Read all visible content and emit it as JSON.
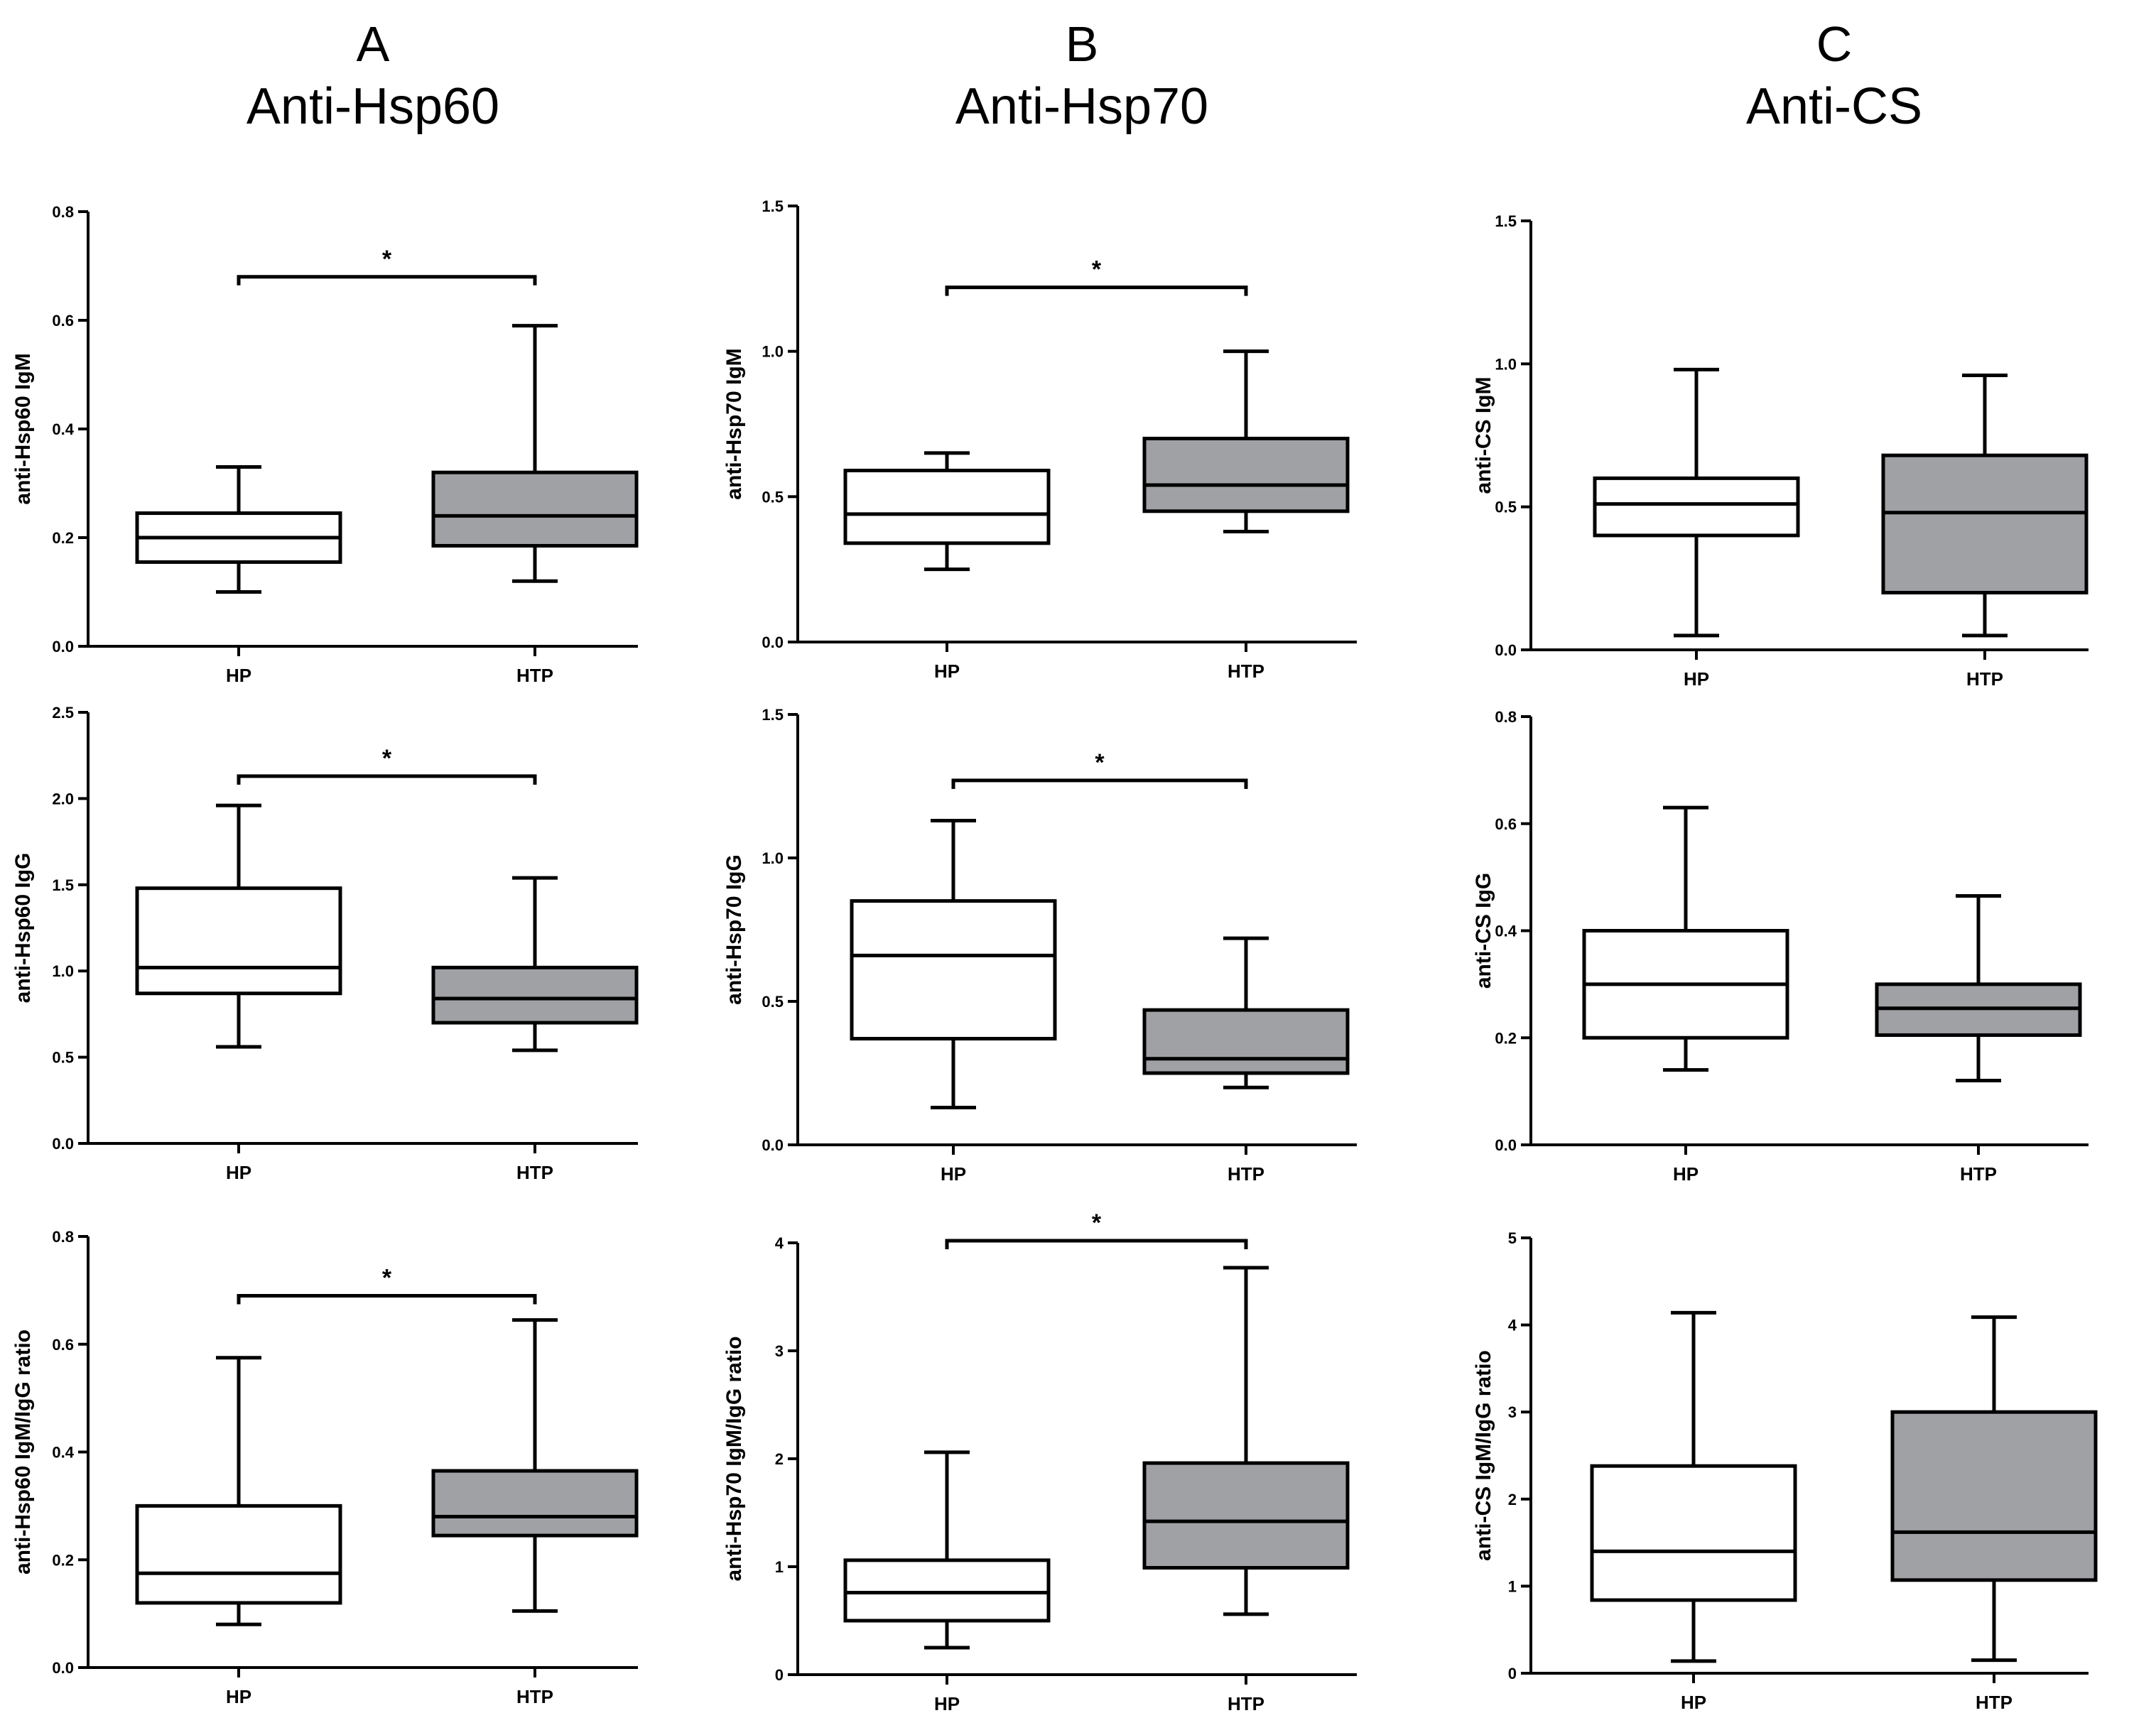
{
  "columns": [
    {
      "letter": "A",
      "title": "Anti-Hsp60"
    },
    {
      "letter": "B",
      "title": "Anti-Hsp70"
    },
    {
      "letter": "C",
      "title": "Anti-CS"
    }
  ],
  "colors": {
    "hp_fill": "#ffffff",
    "htp_fill": "#a0a1a5",
    "stroke": "#000000"
  },
  "chart_data": [
    {
      "id": "a1",
      "type": "box",
      "ylabel": "anti-Hsp60 IgM",
      "ylim": [
        0,
        0.8
      ],
      "yticks": [
        0.0,
        0.2,
        0.4,
        0.6,
        0.8
      ],
      "tick_decimals": 1,
      "categories": [
        "HP",
        "HTP"
      ],
      "boxes": [
        {
          "name": "HP",
          "min": 0.1,
          "q1": 0.155,
          "median": 0.2,
          "q3": 0.245,
          "max": 0.33
        },
        {
          "name": "HTP",
          "min": 0.12,
          "q1": 0.185,
          "median": 0.24,
          "q3": 0.32,
          "max": 0.59
        }
      ],
      "significance": {
        "label": "*",
        "y": 0.68
      }
    },
    {
      "id": "b1",
      "type": "box",
      "ylabel": "anti-Hsp70 IgM",
      "ylim": [
        0,
        1.5
      ],
      "yticks": [
        0.0,
        0.5,
        1.0,
        1.5
      ],
      "tick_decimals": 1,
      "categories": [
        "HP",
        "HTP"
      ],
      "boxes": [
        {
          "name": "HP",
          "min": 0.25,
          "q1": 0.34,
          "median": 0.44,
          "q3": 0.59,
          "max": 0.65
        },
        {
          "name": "HTP",
          "min": 0.38,
          "q1": 0.45,
          "median": 0.54,
          "q3": 0.7,
          "max": 1.0
        }
      ],
      "significance": {
        "label": "*",
        "y": 1.22
      }
    },
    {
      "id": "c1",
      "type": "box",
      "ylabel": "anti-CS IgM",
      "ylim": [
        0,
        1.5
      ],
      "yticks": [
        0.0,
        0.5,
        1.0,
        1.5
      ],
      "tick_decimals": 1,
      "categories": [
        "HP",
        "HTP"
      ],
      "boxes": [
        {
          "name": "HP",
          "min": 0.05,
          "q1": 0.4,
          "median": 0.51,
          "q3": 0.6,
          "max": 0.98
        },
        {
          "name": "HTP",
          "min": 0.05,
          "q1": 0.2,
          "median": 0.48,
          "q3": 0.68,
          "max": 0.96
        }
      ],
      "significance": null
    },
    {
      "id": "a2",
      "type": "box",
      "ylabel": "anti-Hsp60 IgG",
      "ylim": [
        0,
        2.5
      ],
      "yticks": [
        0.0,
        0.5,
        1.0,
        1.5,
        2.0,
        2.5
      ],
      "tick_decimals": 1,
      "categories": [
        "HP",
        "HTP"
      ],
      "boxes": [
        {
          "name": "HP",
          "min": 0.56,
          "q1": 0.87,
          "median": 1.02,
          "q3": 1.48,
          "max": 1.96
        },
        {
          "name": "HTP",
          "min": 0.54,
          "q1": 0.7,
          "median": 0.84,
          "q3": 1.02,
          "max": 1.54
        }
      ],
      "significance": {
        "label": "*",
        "y": 2.13
      }
    },
    {
      "id": "b2",
      "type": "box",
      "ylabel": "anti-Hsp70 IgG",
      "ylim": [
        0,
        1.5
      ],
      "yticks": [
        0.0,
        0.5,
        1.0,
        1.5
      ],
      "tick_decimals": 1,
      "categories": [
        "HP",
        "HTP"
      ],
      "boxes": [
        {
          "name": "HP",
          "min": 0.13,
          "q1": 0.37,
          "median": 0.66,
          "q3": 0.85,
          "max": 1.13
        },
        {
          "name": "HTP",
          "min": 0.2,
          "q1": 0.25,
          "median": 0.3,
          "q3": 0.47,
          "max": 0.72
        }
      ],
      "significance": {
        "label": "*",
        "y": 1.27
      }
    },
    {
      "id": "c2",
      "type": "box",
      "ylabel": "anti-CS IgG",
      "ylim": [
        0,
        0.8
      ],
      "yticks": [
        0.0,
        0.2,
        0.4,
        0.6,
        0.8
      ],
      "tick_decimals": 1,
      "categories": [
        "HP",
        "HTP"
      ],
      "boxes": [
        {
          "name": "HP",
          "min": 0.14,
          "q1": 0.2,
          "median": 0.3,
          "q3": 0.4,
          "max": 0.63
        },
        {
          "name": "HTP",
          "min": 0.12,
          "q1": 0.205,
          "median": 0.255,
          "q3": 0.3,
          "max": 0.465
        }
      ],
      "significance": null
    },
    {
      "id": "a3",
      "type": "box",
      "ylabel": "anti-Hsp60 IgM/IgG ratio",
      "ylim": [
        0,
        0.8
      ],
      "yticks": [
        0.0,
        0.2,
        0.4,
        0.6,
        0.8
      ],
      "tick_decimals": 1,
      "categories": [
        "HP",
        "HTP"
      ],
      "boxes": [
        {
          "name": "HP",
          "min": 0.08,
          "q1": 0.12,
          "median": 0.175,
          "q3": 0.3,
          "max": 0.575
        },
        {
          "name": "HTP",
          "min": 0.105,
          "q1": 0.245,
          "median": 0.28,
          "q3": 0.365,
          "max": 0.645
        }
      ],
      "significance": {
        "label": "*",
        "y": 0.69
      }
    },
    {
      "id": "b3",
      "type": "box",
      "ylabel": "anti-Hsp70 IgM/IgG ratio",
      "ylim": [
        0,
        4
      ],
      "yticks": [
        0,
        1,
        2,
        3,
        4
      ],
      "tick_decimals": 0,
      "categories": [
        "HP",
        "HTP"
      ],
      "boxes": [
        {
          "name": "HP",
          "min": 0.25,
          "q1": 0.5,
          "median": 0.76,
          "q3": 1.06,
          "max": 2.06
        },
        {
          "name": "HTP",
          "min": 0.56,
          "q1": 0.99,
          "median": 1.42,
          "q3": 1.96,
          "max": 3.77
        }
      ],
      "significance": {
        "label": "*",
        "y": 4.02
      }
    },
    {
      "id": "c3",
      "type": "box",
      "ylabel": "anti-CS IgM/IgG ratio",
      "ylim": [
        0,
        5
      ],
      "yticks": [
        0,
        1,
        2,
        3,
        4,
        5
      ],
      "tick_decimals": 0,
      "categories": [
        "HP",
        "HTP"
      ],
      "boxes": [
        {
          "name": "HP",
          "min": 0.14,
          "q1": 0.84,
          "median": 1.4,
          "q3": 2.38,
          "max": 4.14
        },
        {
          "name": "HTP",
          "min": 0.15,
          "q1": 1.07,
          "median": 1.62,
          "q3": 3.0,
          "max": 4.09
        }
      ],
      "significance": null
    }
  ]
}
